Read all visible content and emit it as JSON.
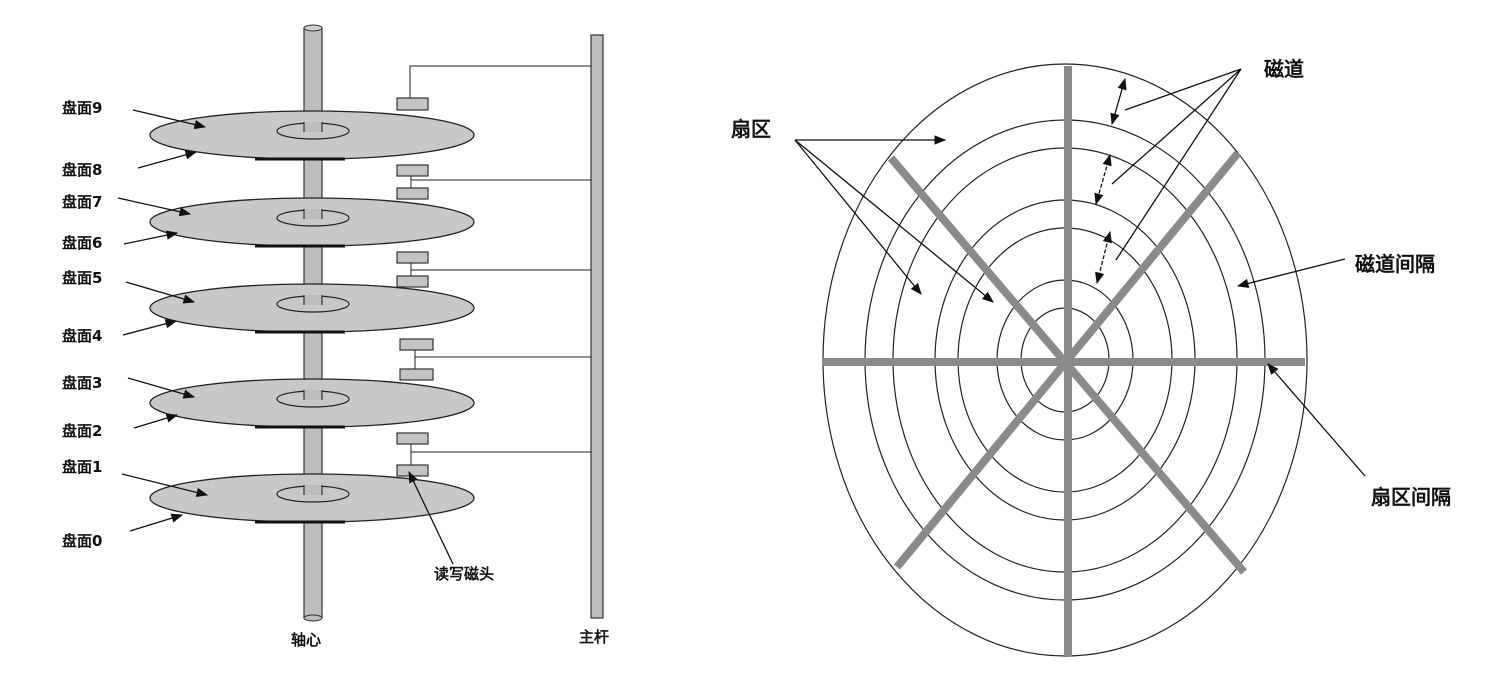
{
  "left_diagram": {
    "surface_labels": [
      "盘面9",
      "盘面8",
      "盘面7",
      "盘面6",
      "盘面5",
      "盘面4",
      "盘面3",
      "盘面2",
      "盘面1",
      "盘面0"
    ],
    "head_label": "读写磁头",
    "axis_label": "轴心",
    "rod_label": "主杆"
  },
  "right_diagram": {
    "sector_label": "扇区",
    "track_label": "磁道",
    "track_gap_label": "磁道间隔",
    "sector_gap_label": "扇区间隔"
  },
  "colors": {
    "platter": "#c8c8c8",
    "spoke": "#8a8a8a",
    "line": "#222222"
  }
}
